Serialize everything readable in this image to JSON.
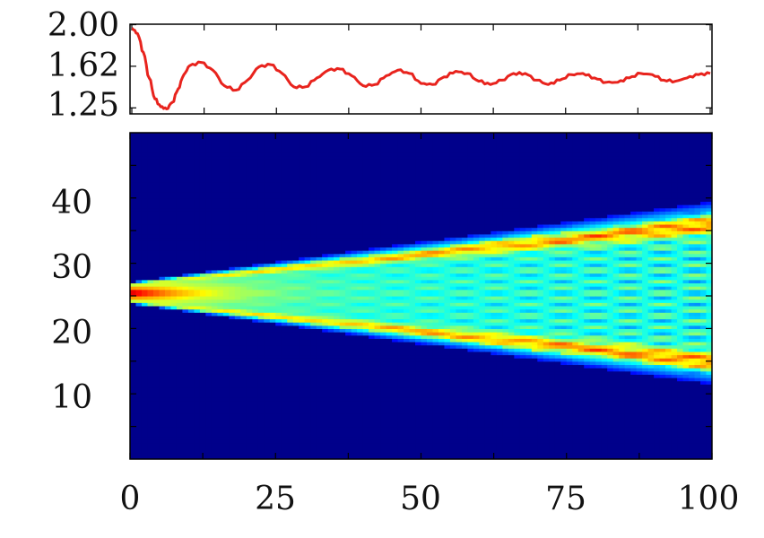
{
  "chart_data": [
    {
      "type": "line",
      "xlim": [
        0,
        100
      ],
      "ylim": [
        1.22,
        1.98
      ],
      "y_ticks": [
        "2.00",
        "1.62",
        "1.25"
      ],
      "x_tick_labels_shown": false,
      "series": [
        {
          "color": "#e8231d",
          "x": [
            0,
            1,
            2,
            3,
            4,
            5,
            6,
            7,
            8,
            9,
            10,
            12,
            14,
            16,
            18,
            20,
            22,
            24,
            26,
            28,
            30,
            32,
            34,
            36,
            38,
            40,
            42,
            44,
            46,
            48,
            50,
            52,
            54,
            56,
            58,
            60,
            62,
            64,
            66,
            68,
            70,
            72,
            74,
            76,
            78,
            80,
            82,
            84,
            86,
            88,
            90,
            92,
            94,
            96,
            98,
            100
          ],
          "y": [
            1.97,
            1.92,
            1.75,
            1.52,
            1.33,
            1.26,
            1.24,
            1.3,
            1.42,
            1.55,
            1.63,
            1.66,
            1.59,
            1.45,
            1.41,
            1.5,
            1.62,
            1.64,
            1.56,
            1.44,
            1.44,
            1.52,
            1.59,
            1.6,
            1.54,
            1.45,
            1.46,
            1.54,
            1.59,
            1.56,
            1.47,
            1.46,
            1.53,
            1.58,
            1.56,
            1.49,
            1.46,
            1.5,
            1.56,
            1.56,
            1.5,
            1.46,
            1.5,
            1.55,
            1.56,
            1.52,
            1.48,
            1.48,
            1.52,
            1.56,
            1.55,
            1.5,
            1.49,
            1.52,
            1.55,
            1.56
          ]
        }
      ]
    },
    {
      "type": "heatmap",
      "xlim": [
        0,
        100
      ],
      "ylim": [
        0,
        50
      ],
      "x_ticks": [
        "0",
        "25",
        "50",
        "75",
        "100"
      ],
      "y_ticks": [
        "10",
        "20",
        "30",
        "40"
      ],
      "colormap": "jet",
      "background_color": "#00008b",
      "features": {
        "source_center_y": 25.5,
        "cone_edges_at_x100": [
          12.5,
          38.5
        ],
        "bright_ridges_at_x100": [
          14,
          37
        ]
      }
    }
  ]
}
